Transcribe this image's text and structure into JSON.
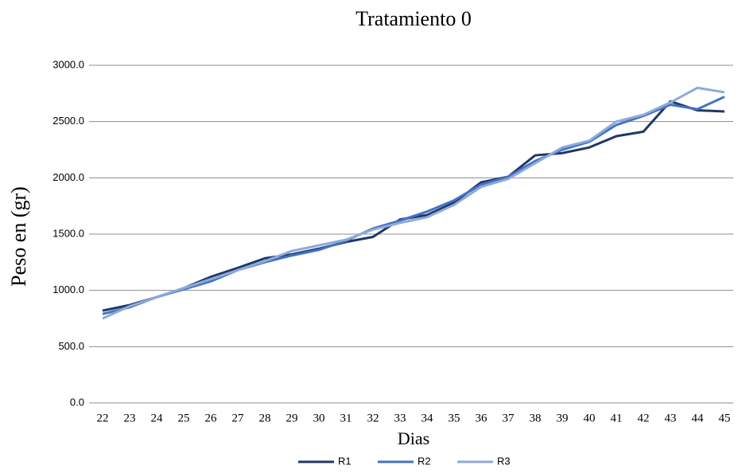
{
  "chart_data": {
    "type": "line",
    "title": "Tratamiento 0",
    "x_label": "Dias",
    "y_label": "Peso en (gr)",
    "categories": [
      "22",
      "23",
      "24",
      "25",
      "26",
      "27",
      "28",
      "29",
      "30",
      "31",
      "32",
      "33",
      "34",
      "35",
      "36",
      "37",
      "38",
      "39",
      "40",
      "41",
      "42",
      "43",
      "44",
      "45"
    ],
    "series": [
      {
        "name": "R1",
        "color": "#1f3864",
        "values": [
          820,
          870,
          940,
          1020,
          1120,
          1200,
          1285,
          1320,
          1370,
          1430,
          1475,
          1630,
          1670,
          1780,
          1960,
          2010,
          2200,
          2220,
          2270,
          2370,
          2410,
          2680,
          2600,
          2590
        ]
      },
      {
        "name": "R2",
        "color": "#4472c4",
        "values": [
          790,
          850,
          940,
          1010,
          1080,
          1180,
          1250,
          1310,
          1360,
          1440,
          1550,
          1620,
          1700,
          1800,
          1940,
          2010,
          2150,
          2250,
          2320,
          2470,
          2550,
          2650,
          2610,
          2720
        ]
      },
      {
        "name": "R3",
        "color": "#8eaadb",
        "values": [
          750,
          860,
          940,
          1020,
          1100,
          1180,
          1260,
          1350,
          1400,
          1450,
          1540,
          1600,
          1650,
          1760,
          1920,
          1990,
          2130,
          2270,
          2330,
          2500,
          2560,
          2670,
          2800,
          2760
        ]
      }
    ],
    "ylim": [
      0,
      3000
    ],
    "yticks": [
      {
        "value": 0,
        "label": "0.0"
      },
      {
        "value": 500,
        "label": "500.0"
      },
      {
        "value": 1000,
        "label": "1000.0"
      },
      {
        "value": 1500,
        "label": "1500.0"
      },
      {
        "value": 2000,
        "label": "2000.0"
      },
      {
        "value": 2500,
        "label": "2500.0"
      },
      {
        "value": 3000,
        "label": "3000.0"
      }
    ],
    "grid": true,
    "legend": "bottom"
  }
}
